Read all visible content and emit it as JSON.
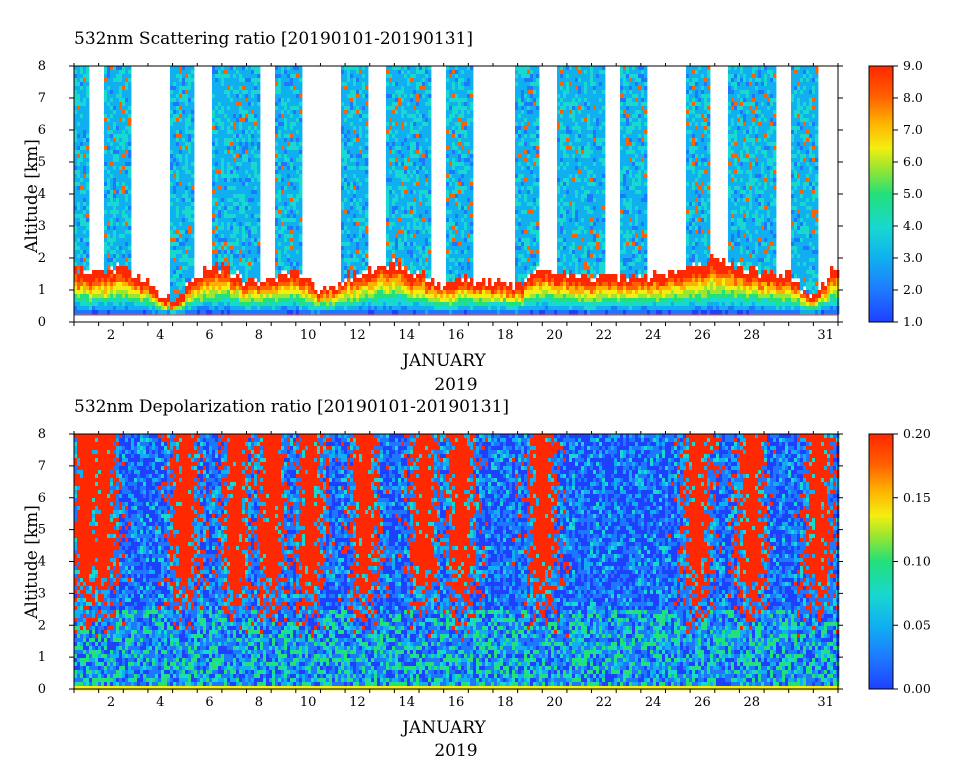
{
  "chart_data": [
    {
      "type": "heatmap",
      "title": "532nm Scattering ratio [20190101-20190131]",
      "ylabel": "Altitude [km]",
      "xlabel": "JANUARY",
      "xlabel2": "2019",
      "x_tick_labels": [
        "2",
        "4",
        "6",
        "8",
        "10",
        "12",
        "14",
        "16",
        "18",
        "20",
        "22",
        "24",
        "26",
        "28",
        "31"
      ],
      "y_tick_labels": [
        "0",
        "1",
        "2",
        "3",
        "4",
        "5",
        "6",
        "7",
        "8"
      ],
      "xlim": [
        1,
        32
      ],
      "ylim": [
        0,
        8
      ],
      "colorbar": {
        "range": [
          1.0,
          9.0
        ],
        "tick_labels": [
          "1.0",
          "2.0",
          "3.0",
          "4.0",
          "5.0",
          "6.0",
          "7.0",
          "8.0",
          "9.0"
        ]
      },
      "colors": [
        "#1e40ff",
        "#1e78ff",
        "#10b0f0",
        "#18d8d0",
        "#22e07a",
        "#9ae630",
        "#f4ee10",
        "#ffb000",
        "#ff6000",
        "#ff2800"
      ],
      "boundary_layer_top_km": [
        [
          1,
          1.6
        ],
        [
          2,
          1.4
        ],
        [
          3,
          1.7
        ],
        [
          4,
          1.2
        ],
        [
          5,
          0.5
        ],
        [
          6,
          1.4
        ],
        [
          7,
          1.7
        ],
        [
          8,
          1.2
        ],
        [
          9,
          1.3
        ],
        [
          10,
          1.6
        ],
        [
          11,
          0.9
        ],
        [
          12,
          1.3
        ],
        [
          13,
          1.6
        ],
        [
          14,
          1.8
        ],
        [
          15,
          1.4
        ],
        [
          16,
          1.1
        ],
        [
          17,
          1.3
        ],
        [
          18,
          1.2
        ],
        [
          19,
          1.0
        ],
        [
          20,
          1.6
        ],
        [
          21,
          1.4
        ],
        [
          22,
          1.3
        ],
        [
          23,
          1.4
        ],
        [
          24,
          1.3
        ],
        [
          25,
          1.5
        ],
        [
          26,
          1.6
        ],
        [
          27,
          1.9
        ],
        [
          28,
          1.6
        ],
        [
          29,
          1.4
        ],
        [
          30,
          1.4
        ],
        [
          31,
          0.7
        ],
        [
          32,
          1.8
        ]
      ]
    },
    {
      "type": "heatmap",
      "title": "532nm Depolarization ratio [20190101-20190131]",
      "ylabel": "Altitude [km]",
      "xlabel": "JANUARY",
      "xlabel2": "2019",
      "x_tick_labels": [
        "2",
        "4",
        "6",
        "8",
        "10",
        "12",
        "14",
        "16",
        "18",
        "20",
        "22",
        "24",
        "26",
        "28",
        "31"
      ],
      "y_tick_labels": [
        "0",
        "1",
        "2",
        "3",
        "4",
        "5",
        "6",
        "7",
        "8"
      ],
      "xlim": [
        1,
        32
      ],
      "ylim": [
        0,
        8
      ],
      "colorbar": {
        "range": [
          0.0,
          0.2
        ],
        "tick_labels": [
          "0.00",
          "0.05",
          "0.10",
          "0.15",
          "0.20"
        ]
      },
      "colors": [
        "#1e40ff",
        "#1e78ff",
        "#10b0f0",
        "#18d8d0",
        "#22e07a",
        "#9ae630",
        "#f4ee10",
        "#ffb000",
        "#ff6000",
        "#ff2800"
      ],
      "high_depolarization_days": [
        1.5,
        2.2,
        5.5,
        7.6,
        9.0,
        10.6,
        12.8,
        15.2,
        16.7,
        20.0,
        26.3,
        28.5,
        31.2
      ]
    }
  ]
}
